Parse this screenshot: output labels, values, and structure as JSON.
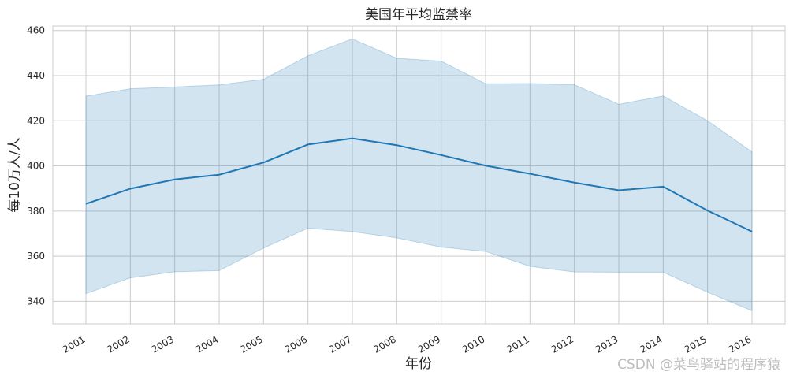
{
  "chart_data": {
    "type": "line",
    "title": "美国年平均监禁率",
    "xlabel": "年份",
    "ylabel": "每10万人/人",
    "categories": [
      "2001",
      "2002",
      "2003",
      "2004",
      "2005",
      "2006",
      "2007",
      "2008",
      "2009",
      "2010",
      "2011",
      "2012",
      "2013",
      "2014",
      "2015",
      "2016"
    ],
    "series": [
      {
        "values": [
          383.2,
          389.9,
          394.0,
          396.1,
          401.5,
          409.5,
          412.2,
          409.2,
          404.8,
          400.1,
          396.5,
          392.6,
          389.2,
          390.8,
          380.2,
          370.9
        ],
        "ci_upper": [
          430.9,
          434.2,
          435.0,
          435.9,
          438.4,
          448.8,
          456.3,
          447.7,
          446.4,
          436.4,
          436.5,
          436.0,
          427.3,
          431.0,
          420.0,
          406.2
        ],
        "ci_lower": [
          343.4,
          350.4,
          353.1,
          353.6,
          363.6,
          372.4,
          370.9,
          368.1,
          364.0,
          362.1,
          355.5,
          353.0,
          352.9,
          352.9,
          344.0,
          335.8
        ]
      }
    ],
    "ylim": [
      330,
      462
    ],
    "yticks": [
      340,
      360,
      380,
      400,
      420,
      440,
      460
    ],
    "grid": true,
    "line_color": "#1f77b4",
    "band_color": "#1f77b4"
  },
  "watermark": "CSDN @菜鸟驿站的程序猿"
}
